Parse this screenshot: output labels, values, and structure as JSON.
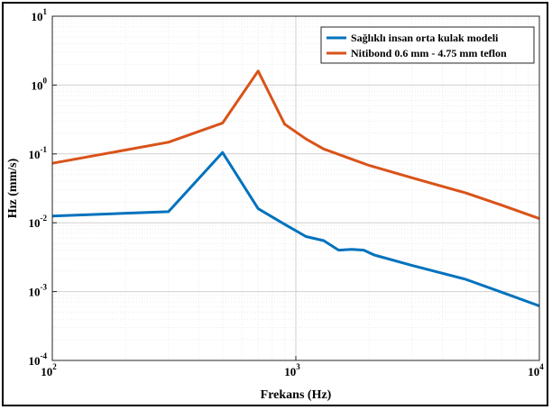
{
  "chart_data": {
    "type": "line",
    "xscale": "log",
    "yscale": "log",
    "xlim": [
      100,
      10000
    ],
    "ylim": [
      0.0001,
      10
    ],
    "xlabel": "Frekans (Hz)",
    "ylabel": "Hız (mm/s)",
    "grid": true,
    "legend_position": "top-right",
    "x_ticks": [
      {
        "value": 100,
        "base": "10",
        "exp": "2"
      },
      {
        "value": 1000,
        "base": "10",
        "exp": "3"
      },
      {
        "value": 10000,
        "base": "10",
        "exp": "4"
      }
    ],
    "y_ticks": [
      {
        "value": 10,
        "base": "10",
        "exp": "1"
      },
      {
        "value": 1,
        "base": "10",
        "exp": "0"
      },
      {
        "value": 0.1,
        "base": "10",
        "exp": "-1"
      },
      {
        "value": 0.01,
        "base": "10",
        "exp": "-2"
      },
      {
        "value": 0.001,
        "base": "10",
        "exp": "-3"
      },
      {
        "value": 0.0001,
        "base": "10",
        "exp": "-4"
      }
    ],
    "series": [
      {
        "name": "Sağlıklı insan orta kulak modeli",
        "color": "#0072BD",
        "points": [
          [
            100,
            0.0125
          ],
          [
            300,
            0.0145
          ],
          [
            500,
            0.105
          ],
          [
            700,
            0.016
          ],
          [
            900,
            0.0095
          ],
          [
            1100,
            0.0063
          ],
          [
            1300,
            0.0055
          ],
          [
            1500,
            0.004
          ],
          [
            1700,
            0.0041
          ],
          [
            1900,
            0.004
          ],
          [
            2100,
            0.0034
          ],
          [
            3000,
            0.0024
          ],
          [
            5000,
            0.0015
          ],
          [
            7000,
            0.00098
          ],
          [
            10000,
            0.00062
          ]
        ]
      },
      {
        "name": "Nitibond 0.6 mm - 4.75 mm teflon",
        "color": "#D95319",
        "points": [
          [
            100,
            0.073
          ],
          [
            300,
            0.148
          ],
          [
            500,
            0.28
          ],
          [
            700,
            1.6
          ],
          [
            900,
            0.27
          ],
          [
            1100,
            0.165
          ],
          [
            1300,
            0.118
          ],
          [
            2000,
            0.068
          ],
          [
            3000,
            0.045
          ],
          [
            5000,
            0.027
          ],
          [
            7000,
            0.018
          ],
          [
            10000,
            0.0115
          ]
        ]
      }
    ]
  }
}
